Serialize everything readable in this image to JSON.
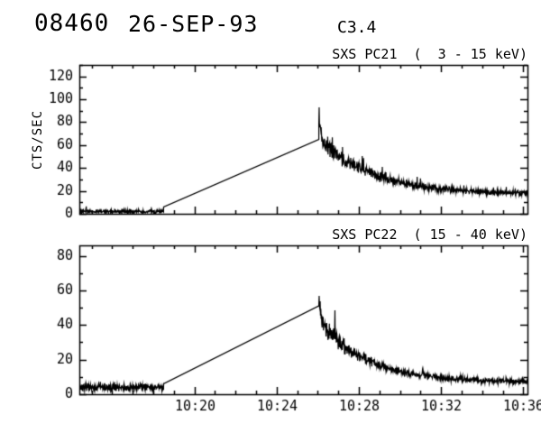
{
  "header": {
    "event_id": "08460",
    "date": "26-SEP-93",
    "goes_class": "C3.4"
  },
  "colors": {
    "background": "#ffffff",
    "foreground": "#000000"
  },
  "x_axis": {
    "start_minutes": 14.4,
    "end_minutes": 36.2,
    "minor_step_minutes": 1,
    "major_ticks": [
      {
        "minutes": 20,
        "label": "10:20"
      },
      {
        "minutes": 24,
        "label": "10:24"
      },
      {
        "minutes": 28,
        "label": "10:28"
      },
      {
        "minutes": 32,
        "label": "10:32"
      },
      {
        "minutes": 36,
        "label": "10:36"
      }
    ]
  },
  "chart_data": [
    {
      "type": "line",
      "title": "SXS PC21  (  3 - 15 keV)",
      "ylabel": "CTS/SEC",
      "xlabel": "",
      "ylim": [
        0,
        130
      ],
      "yticks": [
        0,
        20,
        40,
        60,
        80,
        100,
        120
      ],
      "y_minor_step": 10,
      "approx_peak_cts": 90,
      "series_segments": {
        "pre_flare_baseline": {
          "t_start": 14.4,
          "t_end": 18.5,
          "mean": 2.0,
          "noise": 2.1,
          "spike_chance": 0.02,
          "spike_extra": 5
        },
        "data_gap_line": {
          "t_start": 18.5,
          "v_start": 6,
          "t_end": 26.05,
          "v_end": 65
        },
        "flare_decay": {
          "t_start": 26.05,
          "t_end": 36.2,
          "onset_peak": 90,
          "onset_duration": 0.12,
          "decay_from": 65,
          "decay_to": 17,
          "tau_minutes": 2.6,
          "noise_fraction": 0.15,
          "noise_min": 2.5,
          "spike_chance": 0.03,
          "spike_extra_fraction": 0.3
        }
      }
    },
    {
      "type": "line",
      "title": "SXS PC22  ( 15 - 40 keV)",
      "ylabel": "",
      "xlabel": "",
      "ylim": [
        0,
        86
      ],
      "yticks": [
        0,
        20,
        40,
        60,
        80
      ],
      "y_minor_step": 10,
      "approx_peak_cts": 55,
      "series_segments": {
        "pre_flare_baseline": {
          "t_start": 14.4,
          "t_end": 18.5,
          "mean": 4.0,
          "noise": 2.5,
          "spike_chance": 0.02,
          "spike_extra": 4
        },
        "data_gap_line": {
          "t_start": 18.5,
          "v_start": 6,
          "t_end": 26.05,
          "v_end": 51
        },
        "flare_decay": {
          "t_start": 26.05,
          "t_end": 36.2,
          "onset_peak": 55,
          "onset_duration": 0.12,
          "decay_from": 44,
          "decay_to": 7,
          "tau_minutes": 2.2,
          "noise_fraction": 0.18,
          "noise_min": 2.0,
          "spike_chance": 0.03,
          "spike_extra_fraction": 0.35
        }
      }
    }
  ]
}
